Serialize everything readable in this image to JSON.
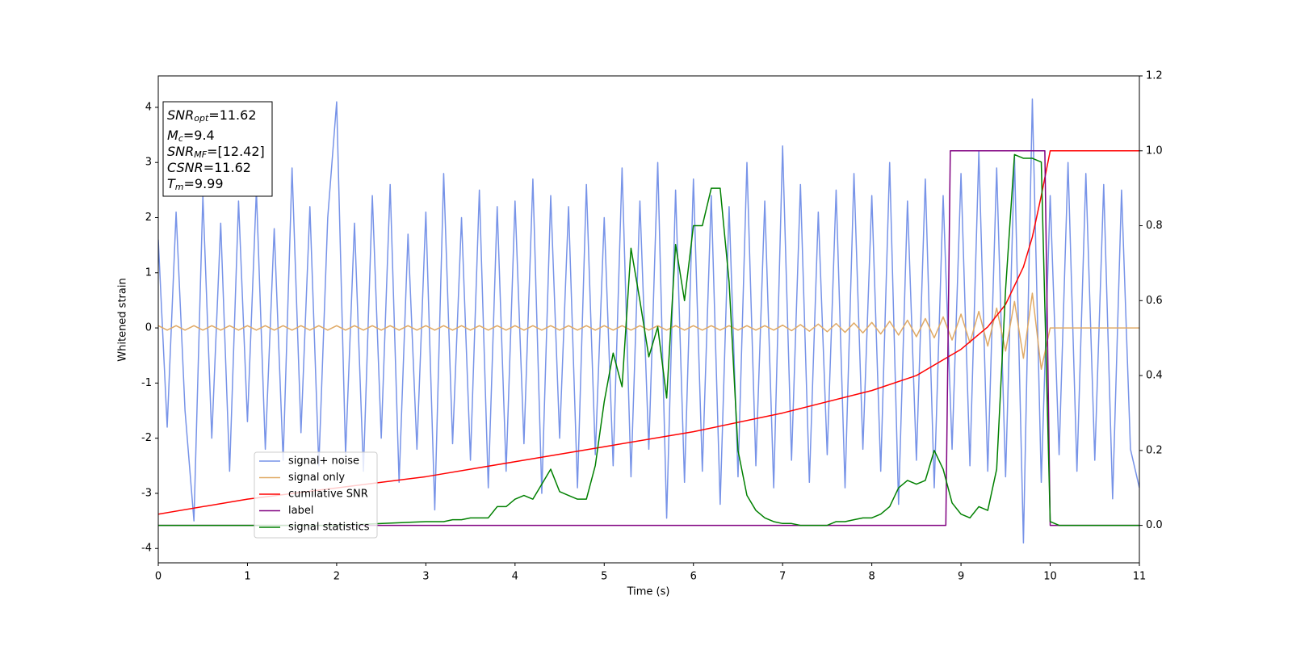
{
  "chart_data": {
    "type": "line",
    "xlabel": "Time (s)",
    "ylabel": "Whitened strain",
    "xlim": [
      0,
      11
    ],
    "xticks": [
      0,
      1,
      2,
      3,
      4,
      5,
      6,
      7,
      8,
      9,
      10,
      11
    ],
    "ylim": [
      -4.26,
      4.57
    ],
    "yticks": [
      -4,
      -3,
      -2,
      -1,
      0,
      1,
      2,
      3,
      4
    ],
    "y2lim": [
      -0.1,
      1.2
    ],
    "y2ticks": [
      {
        "value": 0,
        "label": "0.0"
      },
      {
        "value": 0.2,
        "label": "0.2"
      },
      {
        "value": 0.4,
        "label": "0.4"
      },
      {
        "value": 0.6,
        "label": "0.6"
      },
      {
        "value": 0.8,
        "label": "0.8"
      },
      {
        "value": 1.0,
        "label": "1.0"
      },
      {
        "value": 1.2,
        "label": "1.2"
      }
    ],
    "grid": false,
    "legend": "lower left",
    "annotation": [
      {
        "text": "SNR",
        "sub": "opt",
        "value": "=11.62"
      },
      {
        "text": "M",
        "sub": "c",
        "value": "=9.4"
      },
      {
        "text": "SNR",
        "sub": "MF",
        "value": "=[12.42]"
      },
      {
        "text": "CSNR",
        "value": "=11.62"
      },
      {
        "text": "T",
        "sub": "m",
        "value": "=9.99"
      }
    ],
    "x": [
      0,
      0.1,
      0.2,
      0.3,
      0.4,
      0.5,
      0.6,
      0.7,
      0.8,
      0.9,
      1,
      1.1,
      1.2,
      1.3,
      1.4,
      1.5,
      1.6,
      1.7,
      1.8,
      1.9,
      2,
      2.1,
      2.2,
      2.3,
      2.4,
      2.5,
      2.6,
      2.7,
      2.8,
      2.9,
      3,
      3.1,
      3.2,
      3.3,
      3.4,
      3.5,
      3.6,
      3.7,
      3.8,
      3.9,
      4,
      4.1,
      4.2,
      4.3,
      4.4,
      4.5,
      4.6,
      4.7,
      4.8,
      4.9,
      5,
      5.1,
      5.2,
      5.3,
      5.4,
      5.5,
      5.6,
      5.7,
      5.8,
      5.9,
      6,
      6.1,
      6.2,
      6.3,
      6.4,
      6.5,
      6.6,
      6.7,
      6.8,
      6.9,
      7,
      7.1,
      7.2,
      7.3,
      7.4,
      7.5,
      7.6,
      7.7,
      7.8,
      7.9,
      8,
      8.1,
      8.2,
      8.3,
      8.4,
      8.5,
      8.6,
      8.7,
      8.8,
      8.9,
      9,
      9.1,
      9.2,
      9.3,
      9.4,
      9.5,
      9.6,
      9.7,
      9.8,
      9.9,
      10,
      10.1,
      10.2,
      10.3,
      10.4,
      10.5,
      10.6,
      10.7,
      10.8,
      10.9,
      11
    ],
    "series": [
      {
        "name": "signal+ noise",
        "color": "#7793e8",
        "values": [
          1.6,
          -1.8,
          2.1,
          -1.5,
          -3.5,
          2.4,
          -2.0,
          1.9,
          -2.6,
          2.3,
          -1.7,
          2.5,
          -2.2,
          1.8,
          -2.4,
          2.9,
          -1.9,
          2.2,
          -2.5,
          2.0,
          4.1,
          -2.3,
          1.9,
          -2.6,
          2.4,
          -2.0,
          2.6,
          -2.8,
          1.7,
          -2.2,
          2.1,
          -3.3,
          2.8,
          -2.1,
          2.0,
          -2.4,
          2.5,
          -2.9,
          2.2,
          -2.6,
          2.3,
          -2.1,
          2.7,
          -3.0,
          2.4,
          -2.0,
          2.2,
          -2.9,
          2.6,
          -2.3,
          2.0,
          -2.5,
          2.9,
          -2.7,
          2.3,
          -2.2,
          3.0,
          -3.45,
          2.5,
          -2.8,
          2.7,
          -2.6,
          2.4,
          -3.2,
          2.2,
          -2.7,
          3.0,
          -2.5,
          2.3,
          -2.9,
          3.3,
          -2.4,
          2.6,
          -2.8,
          2.1,
          -2.3,
          2.5,
          -2.9,
          2.8,
          -2.2,
          2.4,
          -2.6,
          3.0,
          -3.2,
          2.3,
          -2.4,
          2.7,
          -2.9,
          2.4,
          -2.2,
          2.8,
          -2.5,
          3.2,
          -2.6,
          2.9,
          -2.7,
          3.1,
          -3.9,
          4.15,
          -2.8,
          2.4,
          -2.3,
          3.0,
          -2.6,
          2.8,
          -2.4,
          2.6,
          -3.1,
          2.5,
          -2.2,
          -2.9
        ]
      },
      {
        "name": "signal only",
        "color": "#e0aa66",
        "values": [
          0.04,
          -0.04,
          0.04,
          -0.04,
          0.04,
          -0.04,
          0.04,
          -0.04,
          0.04,
          -0.04,
          0.04,
          -0.04,
          0.04,
          -0.04,
          0.04,
          -0.04,
          0.04,
          -0.04,
          0.04,
          -0.04,
          0.04,
          -0.04,
          0.04,
          -0.04,
          0.04,
          -0.04,
          0.04,
          -0.04,
          0.04,
          -0.04,
          0.04,
          -0.04,
          0.04,
          -0.04,
          0.04,
          -0.04,
          0.04,
          -0.04,
          0.04,
          -0.04,
          0.04,
          -0.04,
          0.04,
          -0.04,
          0.04,
          -0.04,
          0.04,
          -0.04,
          0.04,
          -0.04,
          0.04,
          -0.04,
          0.04,
          -0.04,
          0.04,
          -0.04,
          0.04,
          -0.04,
          0.04,
          -0.04,
          0.04,
          -0.04,
          0.04,
          -0.04,
          0.04,
          -0.04,
          0.04,
          -0.04,
          0.04,
          -0.04,
          0.05,
          -0.05,
          0.06,
          -0.06,
          0.07,
          -0.07,
          0.08,
          -0.08,
          0.09,
          -0.09,
          0.1,
          -0.11,
          0.12,
          -0.13,
          0.14,
          -0.16,
          0.17,
          -0.18,
          0.2,
          -0.22,
          0.25,
          -0.27,
          0.3,
          -0.33,
          0.36,
          -0.42,
          0.48,
          -0.55,
          0.63,
          -0.75,
          0,
          0,
          0,
          0,
          0,
          0,
          0,
          0,
          0,
          0,
          0
        ]
      },
      {
        "name": "cumilative SNR",
        "color": "#ff0000",
        "axis": "y2",
        "x": [
          0,
          1,
          2,
          3,
          4,
          5,
          6,
          7,
          8,
          8.5,
          9,
          9.3,
          9.5,
          9.7,
          9.8,
          9.9,
          10,
          11
        ],
        "values": [
          0.03,
          0.07,
          0.1,
          0.13,
          0.17,
          0.21,
          0.25,
          0.3,
          0.36,
          0.4,
          0.47,
          0.53,
          0.59,
          0.69,
          0.77,
          0.88,
          1.0,
          1.0
        ]
      },
      {
        "name": "label",
        "color": "#800080",
        "axis": "y2",
        "x": [
          0,
          8.83,
          8.88,
          9.94,
          10.0,
          11
        ],
        "values": [
          0,
          0,
          1,
          1,
          0,
          0
        ]
      },
      {
        "name": "signal statistics",
        "color": "#008000",
        "axis": "y2",
        "x": [
          0,
          1,
          2,
          3,
          3.1,
          3.2,
          3.3,
          3.4,
          3.5,
          3.6,
          3.7,
          3.8,
          3.9,
          4,
          4.1,
          4.2,
          4.3,
          4.4,
          4.5,
          4.6,
          4.7,
          4.8,
          4.9,
          5,
          5.1,
          5.2,
          5.3,
          5.4,
          5.5,
          5.6,
          5.7,
          5.8,
          5.9,
          6,
          6.1,
          6.2,
          6.3,
          6.4,
          6.5,
          6.6,
          6.7,
          6.8,
          6.9,
          7,
          7.1,
          7.2,
          7.3,
          7.4,
          7.5,
          7.6,
          7.7,
          7.8,
          7.9,
          8,
          8.1,
          8.2,
          8.3,
          8.4,
          8.5,
          8.6,
          8.7,
          8.8,
          8.9,
          9,
          9.1,
          9.2,
          9.3,
          9.4,
          9.5,
          9.6,
          9.7,
          9.8,
          9.9,
          10,
          10.1,
          11
        ],
        "values": [
          0,
          0,
          0,
          0.01,
          0.01,
          0.01,
          0.015,
          0.015,
          0.02,
          0.02,
          0.02,
          0.05,
          0.05,
          0.07,
          0.08,
          0.07,
          0.11,
          0.15,
          0.09,
          0.08,
          0.07,
          0.07,
          0.16,
          0.33,
          0.46,
          0.37,
          0.74,
          0.6,
          0.45,
          0.53,
          0.34,
          0.75,
          0.6,
          0.8,
          0.8,
          0.9,
          0.9,
          0.65,
          0.2,
          0.08,
          0.04,
          0.02,
          0.01,
          0.005,
          0.005,
          0,
          0,
          0,
          0,
          0.01,
          0.01,
          0.015,
          0.02,
          0.02,
          0.03,
          0.05,
          0.1,
          0.12,
          0.11,
          0.12,
          0.2,
          0.15,
          0.06,
          0.03,
          0.02,
          0.05,
          0.04,
          0.15,
          0.63,
          0.99,
          0.98,
          0.98,
          0.97,
          0.01,
          0,
          0
        ]
      }
    ]
  }
}
